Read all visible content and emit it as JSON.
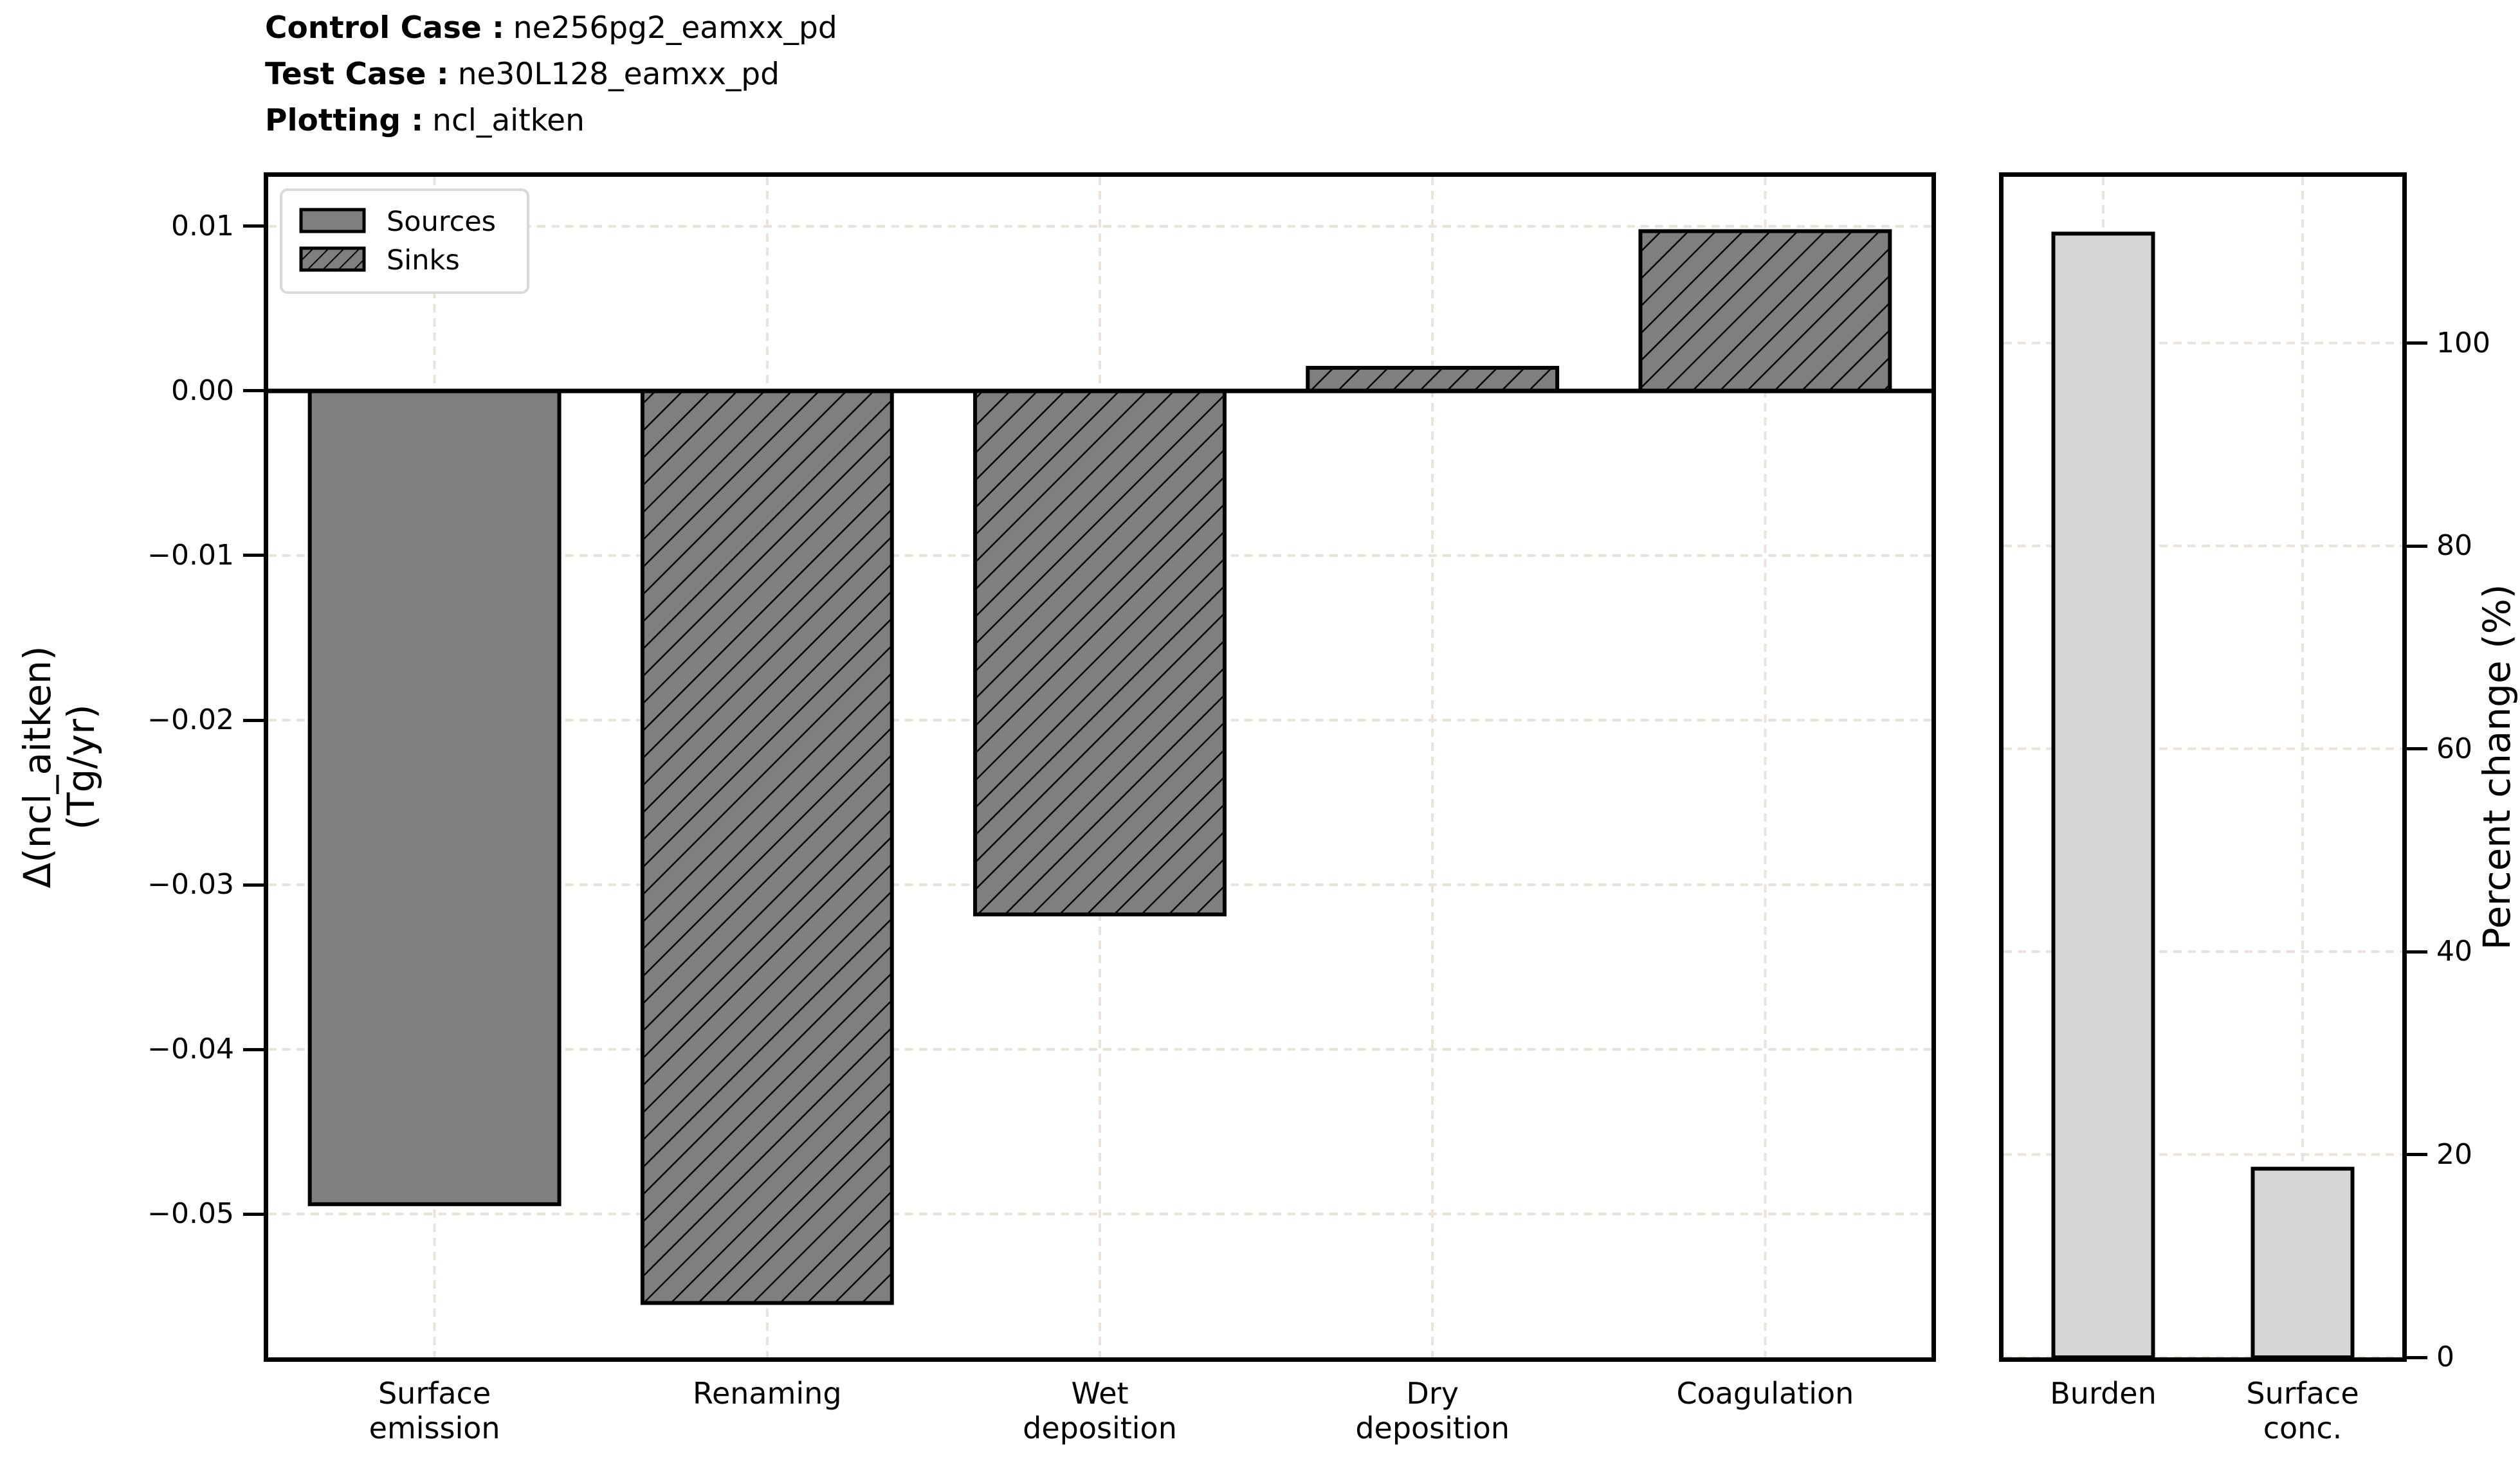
{
  "figure": {
    "header": [
      {
        "label": "Control Case :",
        "value": "ne256pg2_eamxx_pd"
      },
      {
        "label": "Test Case :",
        "value": "ne30L128_eamxx_pd"
      },
      {
        "label": "Plotting :",
        "value": "ncl_aitken"
      }
    ]
  },
  "colors": {
    "background": "#ffffff",
    "bar_gray": "#7f7f7f",
    "bar_lightgray": "#d6d6d6",
    "edge": "#000000",
    "grid": "#eae3dc",
    "legend_border": "#d9d9d9"
  },
  "chart_data": [
    {
      "type": "bar",
      "panel": "budget-fluxes",
      "categories": [
        "Surface\nemission",
        "Renaming",
        "Wet\ndeposition",
        "Dry\ndeposition",
        "Coagulation"
      ],
      "values": [
        -0.0494,
        -0.0554,
        -0.0318,
        0.0014,
        0.0097
      ],
      "bar_styles": [
        "solid",
        "hatch",
        "hatch",
        "hatch",
        "hatch"
      ],
      "legend": [
        {
          "label": "Sources",
          "style": "solid"
        },
        {
          "label": "Sinks",
          "style": "hatch"
        }
      ],
      "ylabel_lines": [
        "Δ(ncl_aitken)",
        "(Tg/yr)"
      ],
      "yticks": [
        {
          "v": 0.01,
          "label": "0.01"
        },
        {
          "v": 0.0,
          "label": "0.00"
        },
        {
          "v": -0.01,
          "label": "−0.01"
        },
        {
          "v": -0.02,
          "label": "−0.02"
        },
        {
          "v": -0.03,
          "label": "−0.03"
        },
        {
          "v": -0.04,
          "label": "−0.04"
        },
        {
          "v": -0.05,
          "label": "−0.05"
        }
      ],
      "ylim": [
        -0.0587,
        0.013
      ],
      "grid": "dashed",
      "zero_line": true,
      "bar_width_frac": 0.75
    },
    {
      "type": "bar",
      "panel": "percent-change",
      "categories": [
        "Burden",
        "Surface\nconc."
      ],
      "values": [
        110.8,
        18.6
      ],
      "bar_styles": [
        "light",
        "light"
      ],
      "legend": [],
      "ylabel": "Percent change (%)",
      "yticks": [
        {
          "v": 100,
          "label": "100"
        },
        {
          "v": 80,
          "label": "80"
        },
        {
          "v": 60,
          "label": "60"
        },
        {
          "v": 40,
          "label": "40"
        },
        {
          "v": 20,
          "label": "20"
        },
        {
          "v": 0,
          "label": "0"
        }
      ],
      "ylim": [
        0,
        116.4
      ],
      "grid": "dashed",
      "zero_line": false,
      "bar_width_frac": 0.5
    }
  ]
}
